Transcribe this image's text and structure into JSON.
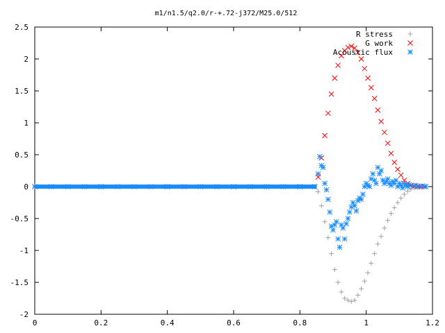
{
  "chart_data": {
    "type": "scatter",
    "title": "m1/n1.5/q2.0/r-+.72-j372/M25.0/512",
    "xlabel": "",
    "ylabel": "",
    "xlim": [
      0,
      1.2
    ],
    "ylim": [
      -2,
      2.5
    ],
    "x_ticks": [
      "0",
      "0.2",
      "0.4",
      "0.6",
      "0.8",
      "1",
      "1.2"
    ],
    "y_ticks": [
      "2.5",
      "2",
      "1.5",
      "1",
      "0.5",
      "0",
      "-0.5",
      "-1",
      "-1.5",
      "-2"
    ],
    "grid": false,
    "legend_position": "top-right",
    "series": [
      {
        "name": "R stress",
        "marker": "plus",
        "color": "#a0a0a0",
        "x": [
          0.0,
          0.2,
          0.4,
          0.6,
          0.8,
          0.845,
          0.855,
          0.865,
          0.875,
          0.885,
          0.895,
          0.905,
          0.915,
          0.925,
          0.935,
          0.945,
          0.955,
          0.965,
          0.975,
          0.985,
          0.995,
          1.005,
          1.015,
          1.025,
          1.035,
          1.045,
          1.055,
          1.065,
          1.075,
          1.085,
          1.095,
          1.105,
          1.115,
          1.125,
          1.135,
          1.145,
          1.155,
          1.165,
          1.175
        ],
        "y": [
          0.0,
          0.0,
          0.0,
          0.0,
          0.0,
          0.0,
          -0.08,
          -0.3,
          -0.55,
          -0.8,
          -1.05,
          -1.3,
          -1.5,
          -1.65,
          -1.75,
          -1.78,
          -1.8,
          -1.78,
          -1.7,
          -1.6,
          -1.48,
          -1.35,
          -1.2,
          -1.05,
          -0.9,
          -0.78,
          -0.65,
          -0.53,
          -0.42,
          -0.33,
          -0.25,
          -0.18,
          -0.12,
          -0.07,
          -0.04,
          -0.02,
          -0.01,
          0.0,
          0.0
        ]
      },
      {
        "name": "G work",
        "marker": "cross",
        "color": "#ff0000",
        "x": [
          0.0,
          0.2,
          0.4,
          0.6,
          0.8,
          0.845,
          0.855,
          0.865,
          0.875,
          0.885,
          0.895,
          0.905,
          0.915,
          0.925,
          0.935,
          0.945,
          0.955,
          0.965,
          0.975,
          0.985,
          0.995,
          1.005,
          1.015,
          1.025,
          1.035,
          1.045,
          1.055,
          1.065,
          1.075,
          1.085,
          1.095,
          1.105,
          1.115,
          1.125,
          1.135,
          1.145,
          1.155,
          1.165,
          1.175
        ],
        "y": [
          0.0,
          0.0,
          0.0,
          0.0,
          0.0,
          0.0,
          0.15,
          0.45,
          0.8,
          1.15,
          1.45,
          1.7,
          1.9,
          2.05,
          2.13,
          2.18,
          2.2,
          2.17,
          2.1,
          2.0,
          1.85,
          1.7,
          1.55,
          1.38,
          1.2,
          1.02,
          0.85,
          0.68,
          0.52,
          0.38,
          0.27,
          0.18,
          0.1,
          0.05,
          0.02,
          0.01,
          0.0,
          0.0,
          0.0
        ]
      },
      {
        "name": "Acoustic flux",
        "marker": "star",
        "color": "#1a8cff",
        "x": [
          0.0,
          0.05,
          0.1,
          0.15,
          0.2,
          0.25,
          0.3,
          0.35,
          0.4,
          0.45,
          0.5,
          0.55,
          0.6,
          0.65,
          0.7,
          0.75,
          0.8,
          0.845,
          0.855,
          0.86,
          0.865,
          0.87,
          0.875,
          0.88,
          0.885,
          0.89,
          0.895,
          0.9,
          0.905,
          0.91,
          0.915,
          0.92,
          0.925,
          0.93,
          0.935,
          0.94,
          0.945,
          0.95,
          0.955,
          0.96,
          0.965,
          0.97,
          0.975,
          0.98,
          0.985,
          0.99,
          0.995,
          1.0,
          1.005,
          1.01,
          1.015,
          1.02,
          1.025,
          1.03,
          1.035,
          1.04,
          1.045,
          1.05,
          1.055,
          1.06,
          1.065,
          1.07,
          1.075,
          1.08,
          1.085,
          1.09,
          1.095,
          1.1,
          1.105,
          1.11,
          1.115,
          1.12,
          1.125,
          1.13,
          1.14,
          1.15,
          1.16,
          1.17,
          1.18
        ],
        "y": [
          0.0,
          0.0,
          0.0,
          0.0,
          0.0,
          0.0,
          0.0,
          0.0,
          0.0,
          0.0,
          0.0,
          0.0,
          0.0,
          0.0,
          0.0,
          0.0,
          0.0,
          0.0,
          0.2,
          0.47,
          0.33,
          0.3,
          0.05,
          -0.05,
          -0.2,
          -0.4,
          -0.62,
          -0.68,
          -0.6,
          -0.55,
          -0.82,
          -0.95,
          -0.6,
          -0.65,
          -0.82,
          -0.58,
          -0.5,
          -0.4,
          -0.32,
          -0.25,
          -0.3,
          -0.38,
          -0.22,
          -0.18,
          -0.2,
          -0.12,
          0.0,
          0.05,
          0.02,
          0.0,
          0.12,
          0.2,
          0.1,
          0.05,
          0.3,
          0.2,
          0.25,
          0.1,
          0.05,
          0.08,
          0.12,
          0.05,
          0.02,
          0.08,
          0.05,
          0.1,
          0.0,
          0.05,
          0.02,
          -0.02,
          0.05,
          0.02,
          0.0,
          0.03,
          0.01,
          0.02,
          0.0,
          0.01,
          0.0
        ]
      }
    ]
  }
}
